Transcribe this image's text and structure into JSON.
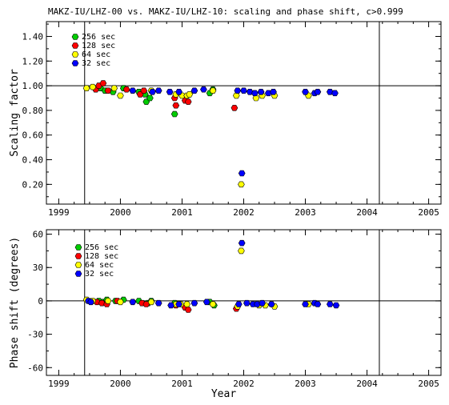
{
  "title": "MAKZ-IU/LHZ-00 vs. MAKZ-IU/LHZ-10: scaling and phase shift, c>0.999",
  "chart_data": [
    {
      "type": "scatter",
      "ylabel": "Scaling factor",
      "xlim": [
        1998.8,
        2005.2
      ],
      "ylim": [
        0.04,
        1.52
      ],
      "x_ticks": [
        "1999",
        "2000",
        "2001",
        "2002",
        "2003",
        "2004",
        "2005"
      ],
      "y_ticks": [
        "0.20",
        "0.40",
        "0.60",
        "0.80",
        "1.00",
        "1.20",
        "1.40"
      ],
      "reference_line": 1.0,
      "vlines": [
        1999.42,
        2004.2
      ],
      "legend": [
        "256 sec",
        "128 sec",
        "64 sec",
        "32 sec"
      ],
      "series": [
        {
          "name": "256 sec",
          "color": "#00cc00",
          "points": [
            [
              1999.68,
              0.98
            ],
            [
              1999.75,
              0.96
            ],
            [
              1999.88,
              0.95
            ],
            [
              2000.05,
              0.98
            ],
            [
              2000.3,
              0.95
            ],
            [
              2000.4,
              0.93
            ],
            [
              2000.42,
              0.87
            ],
            [
              2000.48,
              0.9
            ],
            [
              2000.88,
              0.77
            ],
            [
              2001.45,
              0.94
            ],
            [
              2001.5,
              0.97
            ]
          ]
        },
        {
          "name": "128 sec",
          "color": "#ff0000",
          "points": [
            [
              1999.6,
              0.97
            ],
            [
              1999.65,
              1.0
            ],
            [
              1999.72,
              1.02
            ],
            [
              1999.8,
              0.96
            ],
            [
              2000.1,
              0.97
            ],
            [
              2000.32,
              0.93
            ],
            [
              2000.38,
              0.96
            ],
            [
              2000.88,
              0.9
            ],
            [
              2000.9,
              0.84
            ],
            [
              2001.05,
              0.88
            ],
            [
              2001.1,
              0.87
            ],
            [
              2001.85,
              0.82
            ]
          ]
        },
        {
          "name": "64 sec",
          "color": "#ffff00",
          "points": [
            [
              1999.45,
              0.98
            ],
            [
              1999.55,
              0.99
            ],
            [
              1999.9,
              0.98
            ],
            [
              2000.0,
              0.92
            ],
            [
              2000.5,
              0.96
            ],
            [
              2000.9,
              0.93
            ],
            [
              2001.0,
              0.92
            ],
            [
              2001.08,
              0.92
            ],
            [
              2001.12,
              0.93
            ],
            [
              2001.5,
              0.96
            ],
            [
              2001.88,
              0.92
            ],
            [
              2001.96,
              0.2
            ],
            [
              2002.2,
              0.9
            ],
            [
              2002.3,
              0.92
            ],
            [
              2002.5,
              0.92
            ],
            [
              2003.05,
              0.92
            ]
          ]
        },
        {
          "name": "32 sec",
          "color": "#0000ff",
          "points": [
            [
              2000.2,
              0.96
            ],
            [
              2000.52,
              0.95
            ],
            [
              2000.62,
              0.96
            ],
            [
              2000.8,
              0.95
            ],
            [
              2000.95,
              0.95
            ],
            [
              2001.2,
              0.96
            ],
            [
              2001.35,
              0.97
            ],
            [
              2001.9,
              0.96
            ],
            [
              2001.97,
              0.29
            ],
            [
              2002.0,
              0.96
            ],
            [
              2002.1,
              0.95
            ],
            [
              2002.18,
              0.94
            ],
            [
              2002.28,
              0.95
            ],
            [
              2002.4,
              0.94
            ],
            [
              2002.48,
              0.95
            ],
            [
              2003.0,
              0.95
            ],
            [
              2003.15,
              0.94
            ],
            [
              2003.2,
              0.95
            ],
            [
              2003.4,
              0.95
            ],
            [
              2003.48,
              0.94
            ]
          ]
        }
      ]
    },
    {
      "type": "scatter",
      "xlabel": "Year",
      "ylabel": "Phase shift (degrees)",
      "xlim": [
        1998.8,
        2005.2
      ],
      "ylim": [
        -67,
        64
      ],
      "x_ticks": [
        "1999",
        "2000",
        "2001",
        "2002",
        "2003",
        "2004",
        "2005"
      ],
      "y_ticks": [
        "-60",
        "-30",
        "0",
        "30",
        "60"
      ],
      "reference_line": 0,
      "vlines": [
        1999.42,
        2004.2
      ],
      "legend": [
        "256 sec",
        "128 sec",
        "64 sec",
        "32 sec"
      ],
      "series": [
        {
          "name": "256 sec",
          "color": "#00cc00",
          "points": [
            [
              1999.65,
              0
            ],
            [
              1999.72,
              -1
            ],
            [
              1999.78,
              1
            ],
            [
              1999.92,
              0
            ],
            [
              2000.05,
              1
            ],
            [
              2000.3,
              0
            ],
            [
              2000.45,
              -2
            ],
            [
              2000.5,
              0
            ],
            [
              2000.88,
              -2
            ],
            [
              2001.45,
              -1
            ],
            [
              2001.52,
              -4
            ]
          ]
        },
        {
          "name": "128 sec",
          "color": "#ff0000",
          "points": [
            [
              1999.62,
              -1
            ],
            [
              1999.7,
              -2
            ],
            [
              1999.78,
              -3
            ],
            [
              1999.95,
              0
            ],
            [
              2000.35,
              -2
            ],
            [
              2000.42,
              -3
            ],
            [
              2000.9,
              -4
            ],
            [
              2001.05,
              -6
            ],
            [
              2001.1,
              -8
            ],
            [
              2001.88,
              -7
            ]
          ]
        },
        {
          "name": "64 sec",
          "color": "#ffff00",
          "points": [
            [
              1999.45,
              1
            ],
            [
              1999.55,
              0
            ],
            [
              1999.8,
              0
            ],
            [
              2000.0,
              -1
            ],
            [
              2000.5,
              -1
            ],
            [
              2000.9,
              -3
            ],
            [
              2000.98,
              -3
            ],
            [
              2001.08,
              -3
            ],
            [
              2001.5,
              -3
            ],
            [
              2001.9,
              -5
            ],
            [
              2001.96,
              45
            ],
            [
              2002.25,
              -4
            ],
            [
              2002.35,
              -4
            ],
            [
              2002.5,
              -5
            ],
            [
              2003.05,
              -3
            ]
          ]
        },
        {
          "name": "32 sec",
          "color": "#0000ff",
          "points": [
            [
              2000.2,
              -1
            ],
            [
              2000.62,
              -2
            ],
            [
              2000.82,
              -4
            ],
            [
              2000.95,
              -3
            ],
            [
              2001.2,
              -2
            ],
            [
              2001.4,
              -1
            ],
            [
              1999.48,
              0
            ],
            [
              1999.52,
              -1
            ],
            [
              2001.92,
              -3
            ],
            [
              2001.97,
              52
            ],
            [
              2002.05,
              -2
            ],
            [
              2002.15,
              -3
            ],
            [
              2002.22,
              -3
            ],
            [
              2002.3,
              -2
            ],
            [
              2002.45,
              -3
            ],
            [
              2003.0,
              -3
            ],
            [
              2003.15,
              -2
            ],
            [
              2003.2,
              -3
            ],
            [
              2003.4,
              -3
            ],
            [
              2003.5,
              -4
            ]
          ]
        }
      ]
    }
  ]
}
